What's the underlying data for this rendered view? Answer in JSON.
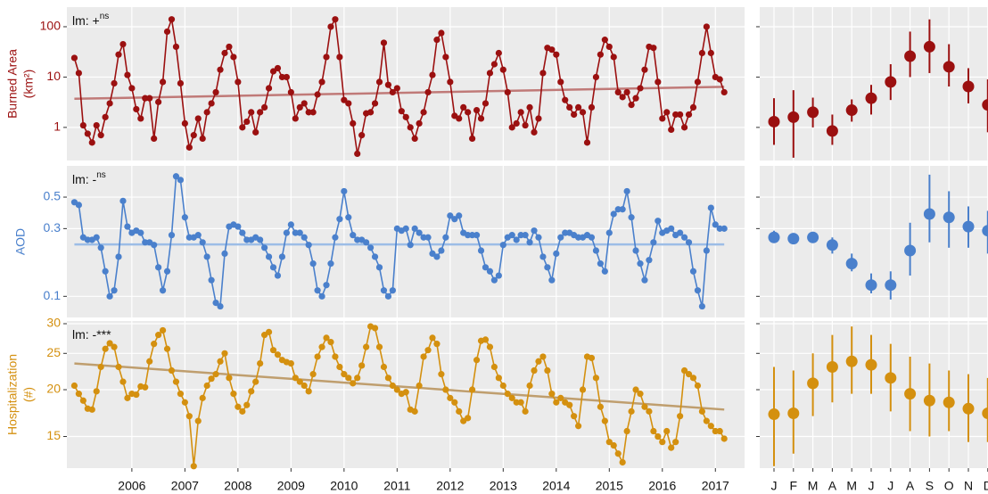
{
  "chart_data": [
    {
      "type": "line",
      "ylabel": [
        "Burned Area",
        "(km²)"
      ],
      "annotation": "lm: +",
      "annotation_sup": "ns",
      "log": true,
      "color": "#9b1010",
      "ylim": [
        0.22,
        245
      ],
      "yticks": [
        1,
        10,
        100
      ],
      "grid": true,
      "x": [
        5,
        6,
        7,
        8,
        9,
        10,
        11,
        12,
        13,
        14,
        15,
        16,
        17,
        18,
        19,
        20,
        21,
        22,
        23,
        24,
        25,
        26,
        27,
        28,
        29,
        30,
        31,
        32,
        33,
        34,
        35,
        36,
        37,
        38,
        39,
        40,
        41,
        42,
        43,
        44,
        45,
        46,
        47,
        48,
        49,
        50,
        51,
        52,
        53,
        54,
        55,
        56,
        57,
        58,
        59,
        60,
        61,
        62,
        63,
        64,
        65,
        66,
        67,
        68,
        69,
        70,
        71,
        72,
        73,
        74,
        75,
        76,
        77,
        78,
        79,
        80,
        81,
        82,
        83,
        84,
        85,
        86,
        87,
        88,
        89,
        90,
        91,
        92,
        93,
        94,
        95,
        96,
        97,
        98,
        99,
        100,
        101,
        102,
        103,
        104,
        105,
        106,
        107,
        108,
        109,
        110,
        111,
        112,
        113,
        114,
        115,
        116,
        117,
        118,
        119,
        120,
        121,
        122,
        123,
        124,
        125,
        126,
        127,
        128,
        129,
        130,
        131,
        132,
        133,
        134,
        135,
        136,
        137,
        138,
        139,
        140,
        141,
        142,
        143,
        144,
        145,
        146,
        147,
        148,
        149,
        150,
        151,
        152
      ],
      "values": [
        24,
        12,
        1.1,
        0.75,
        0.5,
        1.1,
        0.7,
        1.6,
        3,
        7.5,
        28,
        45,
        11,
        6,
        2.3,
        1.5,
        3.8,
        3.8,
        0.6,
        3.2,
        8,
        80,
        140,
        40,
        7.5,
        1.2,
        0.4,
        0.7,
        1.5,
        0.6,
        2,
        3,
        5,
        14,
        30,
        40,
        25,
        8,
        1,
        1.3,
        2,
        0.8,
        2,
        2.5,
        6,
        13,
        15,
        10,
        10,
        5,
        1.5,
        2.5,
        3,
        2,
        2,
        4.5,
        8,
        25,
        100,
        140,
        25,
        3.5,
        3,
        1.2,
        0.3,
        0.7,
        1.9,
        2,
        3,
        8,
        48,
        7,
        5,
        6,
        2.1,
        1.6,
        1,
        0.6,
        1.2,
        2,
        5,
        11,
        55,
        75,
        25,
        8,
        1.7,
        1.5,
        2.5,
        2,
        0.6,
        2.2,
        1.5,
        3,
        12,
        18,
        30,
        14,
        5,
        1,
        1.2,
        2,
        1.1,
        2.5,
        0.8,
        1.5,
        12,
        38,
        35,
        28,
        8,
        3.5,
        2.5,
        1.8,
        2.5,
        2,
        0.5,
        2.5,
        10,
        28,
        55,
        40,
        25,
        5,
        4,
        5,
        2.8,
        3.8,
        6,
        14,
        40,
        38,
        8,
        1.5,
        2,
        0.9,
        1.8,
        1.8,
        1,
        1.8,
        2.5,
        8,
        30,
        100,
        30,
        10,
        9,
        5
      ],
      "trend": {
        "x": [
          5,
          152
        ],
        "values": [
          3.7,
          6.4
        ],
        "color": "#c07a78"
      }
    },
    {
      "type": "line",
      "ylabel": [
        "AOD"
      ],
      "annotation": "lm: -",
      "annotation_sup": "ns",
      "log": true,
      "color": "#4a80cc",
      "ylim": [
        0.071,
        0.83
      ],
      "yticks": [
        0.1,
        0.3,
        0.5
      ],
      "grid": true,
      "x": [
        5,
        6,
        7,
        8,
        9,
        10,
        11,
        12,
        13,
        14,
        15,
        16,
        17,
        18,
        19,
        20,
        21,
        22,
        23,
        24,
        25,
        26,
        27,
        28,
        29,
        30,
        31,
        32,
        33,
        34,
        35,
        36,
        37,
        38,
        39,
        40,
        41,
        42,
        43,
        44,
        45,
        46,
        47,
        48,
        49,
        50,
        51,
        52,
        53,
        54,
        55,
        56,
        57,
        58,
        59,
        60,
        61,
        62,
        63,
        64,
        65,
        66,
        67,
        68,
        69,
        70,
        71,
        72,
        73,
        74,
        75,
        76,
        77,
        78,
        79,
        80,
        81,
        82,
        83,
        84,
        85,
        86,
        87,
        88,
        89,
        90,
        91,
        92,
        93,
        94,
        95,
        96,
        97,
        98,
        99,
        100,
        101,
        102,
        103,
        104,
        105,
        106,
        107,
        108,
        109,
        110,
        111,
        112,
        113,
        114,
        115,
        116,
        117,
        118,
        119,
        120,
        121,
        122,
        123,
        124,
        125,
        126,
        127,
        128,
        129,
        130,
        131,
        132,
        133,
        134,
        135,
        136,
        137,
        138,
        139,
        140,
        141,
        142,
        143,
        144,
        145,
        146,
        147,
        148,
        149,
        150,
        151,
        152
      ],
      "values": [
        0.46,
        0.44,
        0.26,
        0.25,
        0.25,
        0.26,
        0.22,
        0.15,
        0.1,
        0.11,
        0.19,
        0.47,
        0.31,
        0.28,
        0.29,
        0.28,
        0.24,
        0.24,
        0.23,
        0.16,
        0.11,
        0.15,
        0.27,
        0.7,
        0.66,
        0.36,
        0.26,
        0.26,
        0.27,
        0.24,
        0.19,
        0.13,
        0.09,
        0.085,
        0.2,
        0.31,
        0.32,
        0.31,
        0.28,
        0.25,
        0.25,
        0.26,
        0.25,
        0.22,
        0.19,
        0.16,
        0.14,
        0.19,
        0.28,
        0.32,
        0.28,
        0.28,
        0.26,
        0.23,
        0.17,
        0.11,
        0.1,
        0.12,
        0.17,
        0.26,
        0.35,
        0.55,
        0.36,
        0.27,
        0.25,
        0.25,
        0.24,
        0.22,
        0.19,
        0.16,
        0.11,
        0.1,
        0.11,
        0.3,
        0.29,
        0.3,
        0.23,
        0.3,
        0.28,
        0.26,
        0.26,
        0.2,
        0.19,
        0.21,
        0.26,
        0.37,
        0.35,
        0.37,
        0.28,
        0.27,
        0.27,
        0.27,
        0.21,
        0.16,
        0.15,
        0.13,
        0.14,
        0.23,
        0.26,
        0.27,
        0.25,
        0.27,
        0.27,
        0.24,
        0.29,
        0.26,
        0.19,
        0.16,
        0.13,
        0.2,
        0.26,
        0.28,
        0.28,
        0.27,
        0.26,
        0.26,
        0.27,
        0.26,
        0.21,
        0.17,
        0.15,
        0.28,
        0.38,
        0.41,
        0.41,
        0.55,
        0.36,
        0.21,
        0.17,
        0.13,
        0.18,
        0.24,
        0.34,
        0.28,
        0.29,
        0.3,
        0.27,
        0.28,
        0.26,
        0.24,
        0.15,
        0.11,
        0.085,
        0.21,
        0.42,
        0.32,
        0.3,
        0.3
      ],
      "trend": {
        "x": [
          5,
          152
        ],
        "values": [
          0.232,
          0.232
        ],
        "color": "#9cbde6"
      }
    },
    {
      "type": "line",
      "ylabel": [
        "Hospitalization",
        "(#)"
      ],
      "annotation": "lm: -***",
      "log": true,
      "color": "#d4900f",
      "ylim": [
        12.35,
        30.5
      ],
      "yticks": [
        15,
        20,
        25,
        30
      ],
      "grid": true,
      "xlim": [
        3.3,
        156.6
      ],
      "xticks": [
        {
          "value": 18,
          "label": "2006"
        },
        {
          "value": 30,
          "label": "2007"
        },
        {
          "value": 42,
          "label": "2008"
        },
        {
          "value": 54,
          "label": "2009"
        },
        {
          "value": 66,
          "label": "2010"
        },
        {
          "value": 78,
          "label": "2011"
        },
        {
          "value": 90,
          "label": "2012"
        },
        {
          "value": 102,
          "label": "2013"
        },
        {
          "value": 114,
          "label": "2014"
        },
        {
          "value": 126,
          "label": "2015"
        },
        {
          "value": 138,
          "label": "2016"
        },
        {
          "value": 150,
          "label": "2017"
        }
      ],
      "x": [
        5,
        6,
        7,
        8,
        9,
        10,
        11,
        12,
        13,
        14,
        15,
        16,
        17,
        18,
        19,
        20,
        21,
        22,
        23,
        24,
        25,
        26,
        27,
        28,
        29,
        30,
        31,
        32,
        33,
        34,
        35,
        36,
        37,
        38,
        39,
        40,
        41,
        42,
        43,
        44,
        45,
        46,
        47,
        48,
        49,
        50,
        51,
        52,
        53,
        54,
        55,
        56,
        57,
        58,
        59,
        60,
        61,
        62,
        63,
        64,
        65,
        66,
        67,
        68,
        69,
        70,
        71,
        72,
        73,
        74,
        75,
        76,
        77,
        78,
        79,
        80,
        81,
        82,
        83,
        84,
        85,
        86,
        87,
        88,
        89,
        90,
        91,
        92,
        93,
        94,
        95,
        96,
        97,
        98,
        99,
        100,
        101,
        102,
        103,
        104,
        105,
        106,
        107,
        108,
        109,
        110,
        111,
        112,
        113,
        114,
        115,
        116,
        117,
        118,
        119,
        120,
        121,
        122,
        123,
        124,
        125,
        126,
        127,
        128,
        129,
        130,
        131,
        132,
        133,
        134,
        135,
        136,
        137,
        138,
        139,
        140,
        141,
        142,
        143,
        144,
        145,
        146,
        147,
        148,
        149,
        150,
        151,
        152
      ],
      "values": [
        20.5,
        19.5,
        18.7,
        17.8,
        17.7,
        19.8,
        23,
        25.7,
        26.6,
        26,
        23,
        21,
        19,
        19.5,
        19.4,
        20.4,
        20.3,
        23.8,
        26.5,
        28,
        28.8,
        25.7,
        22.5,
        21,
        19.5,
        18.5,
        17,
        12.5,
        16.5,
        19,
        20.5,
        21.4,
        22,
        23.8,
        25,
        21.5,
        19.5,
        18,
        17.5,
        18.2,
        19.8,
        21,
        23.5,
        28,
        28.5,
        25.5,
        24.8,
        24,
        23.7,
        23.5,
        21.5,
        21,
        20.5,
        19.8,
        22,
        24.5,
        26,
        27.5,
        26.8,
        24.5,
        23,
        22,
        21.5,
        20.8,
        21.5,
        23.2,
        26,
        29.5,
        29.2,
        26,
        23,
        21.5,
        20.5,
        20,
        19.5,
        19.7,
        17.7,
        17.5,
        20.5,
        24.5,
        25.5,
        27.5,
        26.5,
        22,
        20,
        19,
        18.5,
        17.5,
        16.5,
        16.8,
        20,
        24,
        27,
        27.2,
        26,
        23,
        21.5,
        20.5,
        19.5,
        19,
        18.5,
        18.5,
        17.5,
        20.5,
        22.5,
        23.8,
        24.5,
        22.5,
        19.5,
        18.5,
        19,
        18.5,
        18.2,
        17,
        16,
        20,
        24.5,
        24.3,
        21.5,
        18,
        16.5,
        14.5,
        14.2,
        13.5,
        12.8,
        15.5,
        17.5,
        20,
        19.5,
        18,
        17.5,
        15.5,
        15,
        14.5,
        15.5,
        14,
        14.5,
        17,
        22.5,
        22,
        21.5,
        20.5,
        17.5,
        16.5,
        16,
        15.5,
        15.5,
        14.8
      ],
      "trend": {
        "x": [
          5,
          152
        ],
        "values": [
          23.5,
          17.7
        ],
        "color": "#bf9e6e"
      }
    },
    {
      "type": "pointrange",
      "panel": 0,
      "color": "#9b1010",
      "values": [
        1.3,
        1.6,
        2,
        0.85,
        2.2,
        3.8,
        8,
        26,
        40,
        16,
        6.5,
        2.8
      ],
      "lower": [
        0.45,
        0.25,
        1,
        0.45,
        1.3,
        1.8,
        3.5,
        10,
        12,
        6.5,
        3,
        0.8
      ],
      "upper": [
        3.8,
        5.5,
        3.9,
        1.8,
        3.6,
        7,
        18,
        80,
        140,
        45,
        15,
        9
      ]
    },
    {
      "type": "pointrange",
      "panel": 1,
      "color": "#4a80cc",
      "values": [
        0.26,
        0.255,
        0.26,
        0.23,
        0.17,
        0.12,
        0.12,
        0.21,
        0.38,
        0.36,
        0.31,
        0.29
      ],
      "lower": [
        0.24,
        0.24,
        0.245,
        0.2,
        0.15,
        0.105,
        0.095,
        0.14,
        0.24,
        0.22,
        0.22,
        0.2
      ],
      "upper": [
        0.29,
        0.27,
        0.275,
        0.26,
        0.2,
        0.145,
        0.15,
        0.33,
        0.72,
        0.55,
        0.43,
        0.4
      ]
    },
    {
      "type": "pointrange",
      "panel": 2,
      "color": "#d4900f",
      "categories": [
        "J",
        "F",
        "M",
        "A",
        "M",
        "J",
        "J",
        "A",
        "S",
        "O",
        "N",
        "D"
      ],
      "values": [
        17.2,
        17.3,
        20.8,
        23,
        23.8,
        23.3,
        21.5,
        19.5,
        18.7,
        18.5,
        17.8,
        17.3
      ],
      "lower": [
        12.5,
        13.5,
        17,
        18.5,
        19.5,
        19.5,
        17.5,
        15.5,
        15,
        15.5,
        14.5,
        14.5
      ],
      "upper": [
        23,
        22.5,
        25,
        28,
        29.5,
        28,
        26.5,
        24.5,
        23.5,
        22.5,
        22,
        21.5
      ]
    }
  ]
}
